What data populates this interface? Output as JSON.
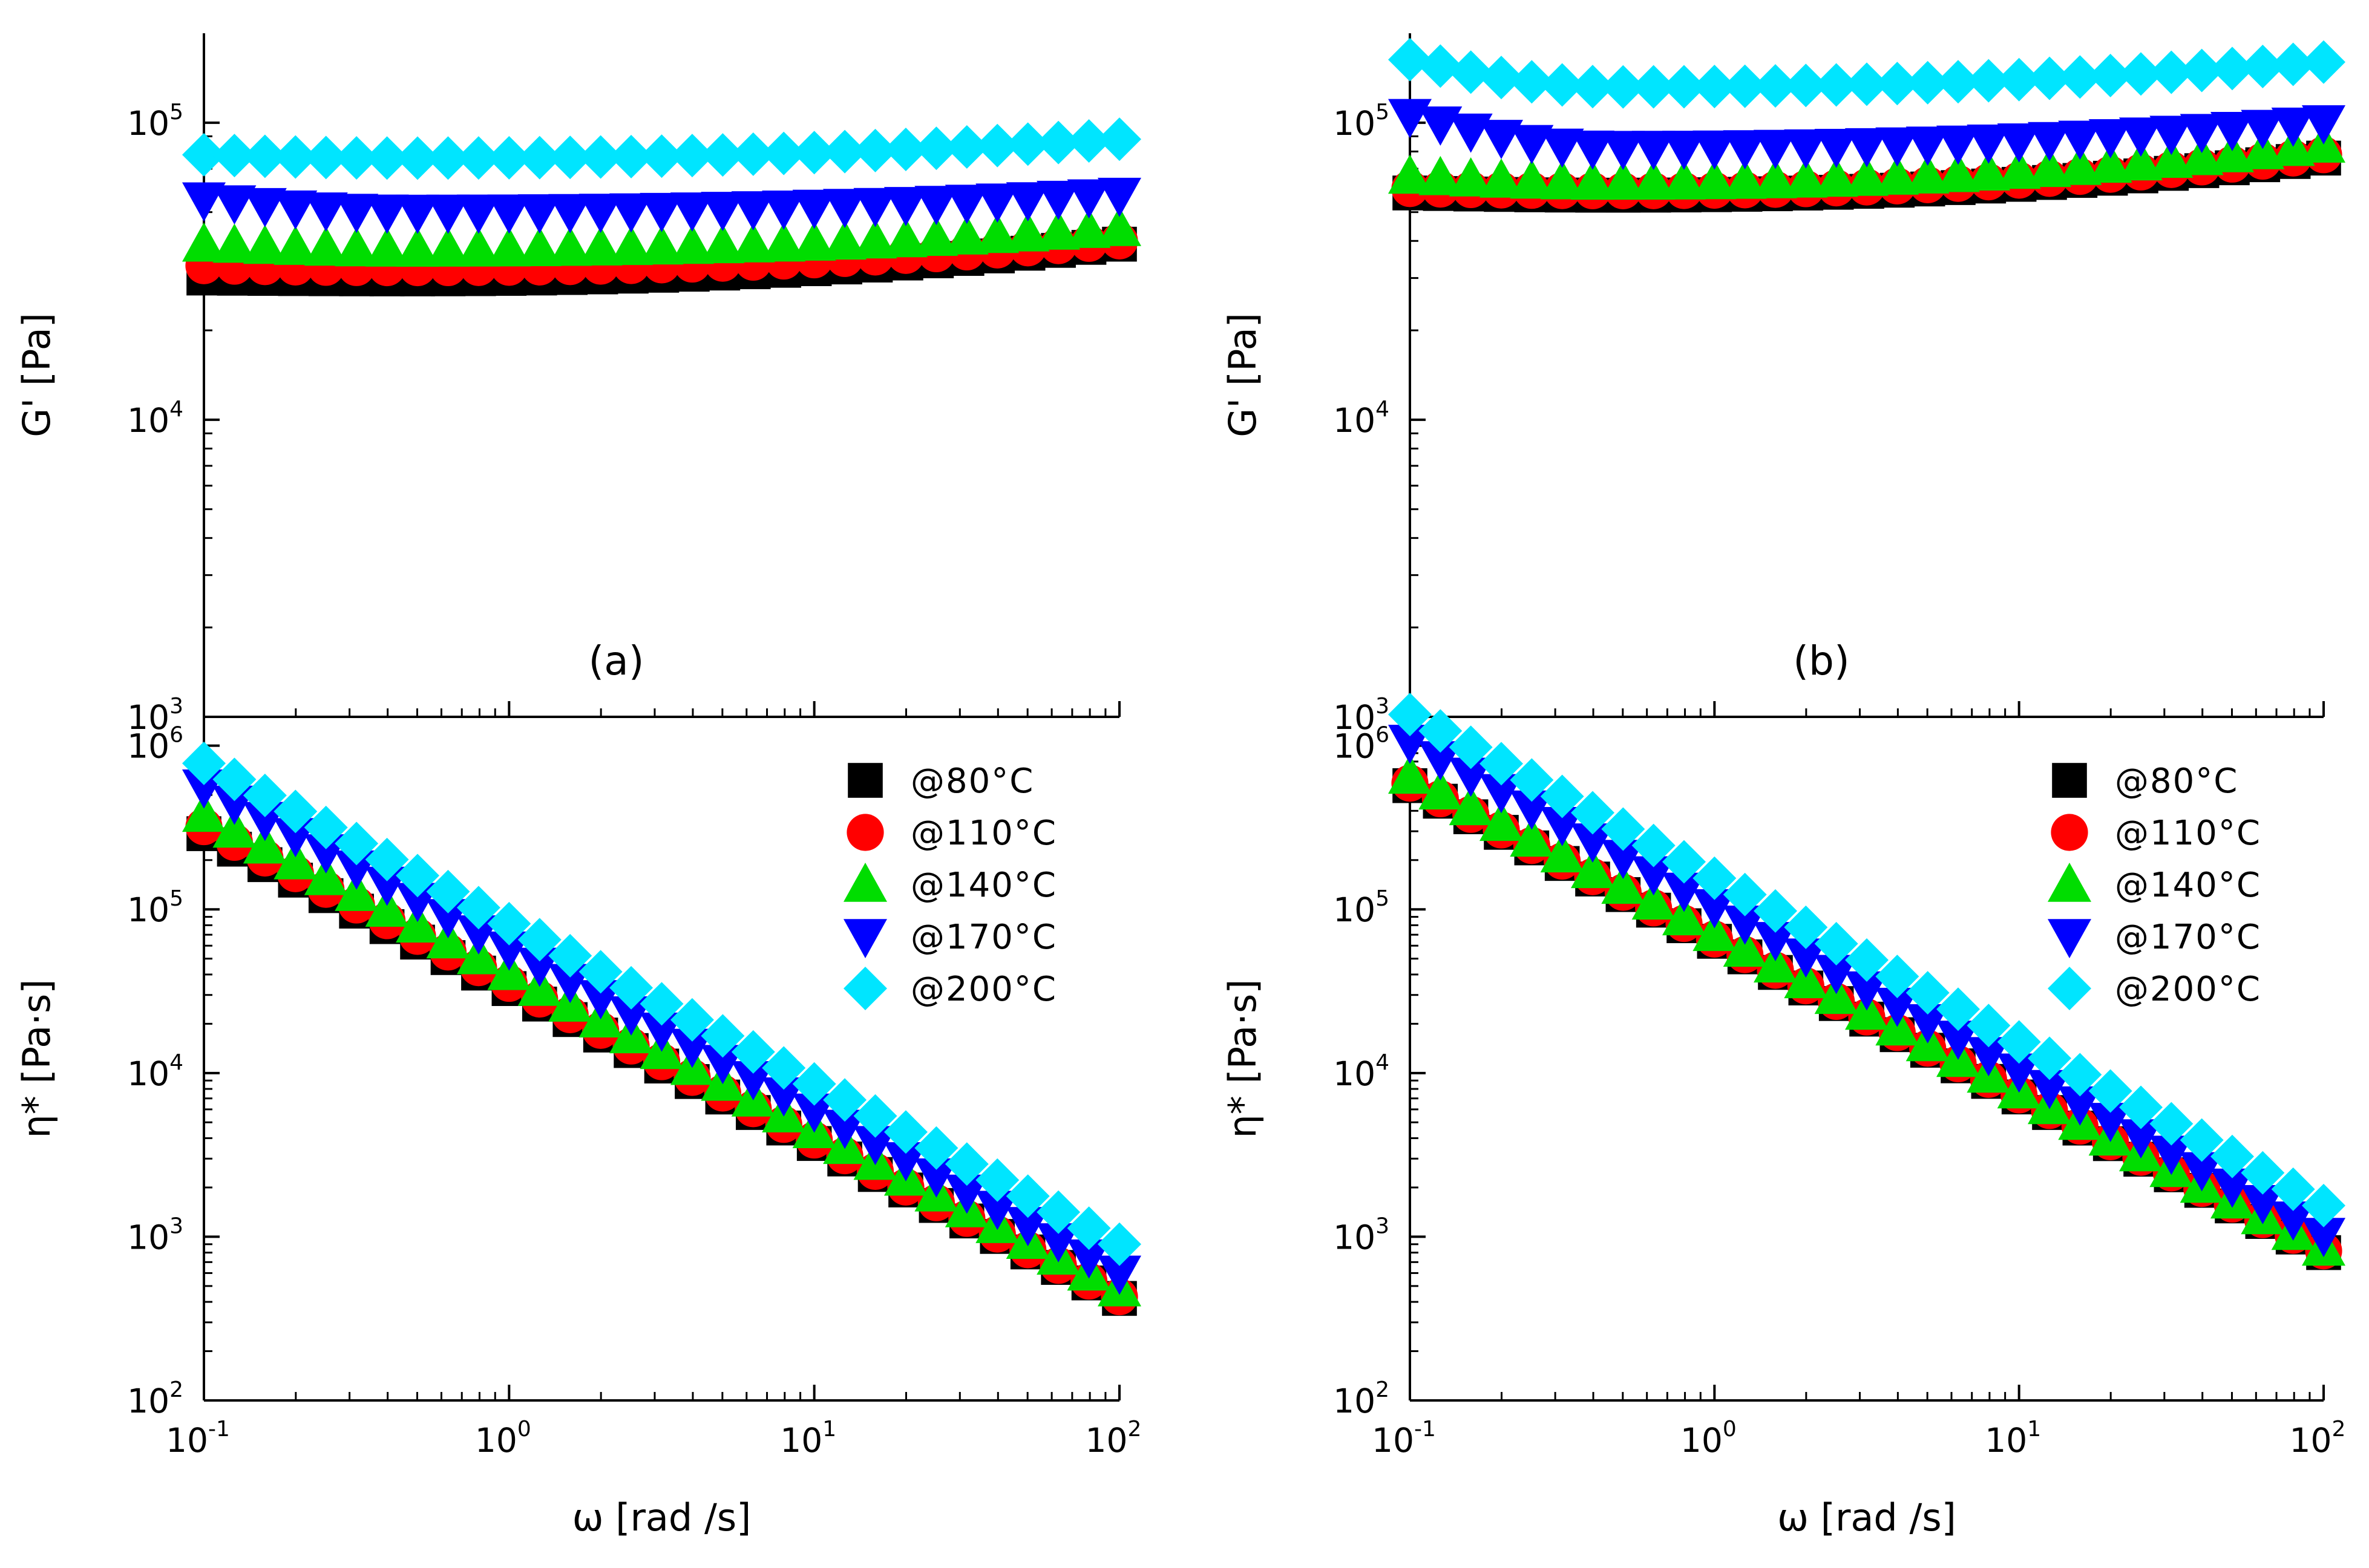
{
  "figure": {
    "panel_labels": [
      "(a)",
      "(b)"
    ],
    "x_axis_title": "ω [rad /s]",
    "y_axis_title_top": "G' [Pa]",
    "y_axis_title_bottom": "η* [Pa·s]"
  },
  "chart_data": [
    {
      "id": "a-top",
      "panel": "(a)",
      "type": "scatter",
      "xscale": "log",
      "yscale": "log",
      "xlim": [
        0.1,
        100
      ],
      "ylim": [
        1000,
        200000
      ],
      "ylabel": "G' [Pa]",
      "xlabel": "",
      "xticks": [
        {
          "base": "10",
          "exp": "-1"
        },
        {
          "base": "10",
          "exp": "0"
        },
        {
          "base": "10",
          "exp": "1"
        },
        {
          "base": "10",
          "exp": "2"
        }
      ],
      "yticks": [
        {
          "value": 1000,
          "base": "10",
          "exp": "3"
        },
        {
          "value": 10000,
          "base": "10",
          "exp": "4"
        },
        {
          "value": 100000,
          "base": "10",
          "exp": "5"
        }
      ],
      "show_x_tick_labels": false,
      "annotation": "(a)",
      "series": [
        {
          "name": "@80°C",
          "marker": "square",
          "color": "#000000",
          "y_start": 30000,
          "y_min": 29800,
          "y_end": 39000
        },
        {
          "name": "@110°C",
          "marker": "circle",
          "color": "#ff0000",
          "y_start": 33000,
          "y_min": 32500,
          "y_end": 40000
        },
        {
          "name": "@140°C",
          "marker": "triangle-up",
          "color": "#00dd00",
          "y_start": 39000,
          "y_min": 37500,
          "y_end": 44000
        },
        {
          "name": "@170°C",
          "marker": "triangle-down",
          "color": "#0000ff",
          "y_start": 55000,
          "y_min": 50000,
          "y_end": 57000
        },
        {
          "name": "@200°C",
          "marker": "diamond",
          "color": "#00e5ff",
          "y_start": 78000,
          "y_min": 76000,
          "y_end": 88000
        }
      ]
    },
    {
      "id": "b-top",
      "panel": "(b)",
      "type": "scatter",
      "xscale": "log",
      "yscale": "log",
      "xlim": [
        0.1,
        100
      ],
      "ylim": [
        1000,
        200000
      ],
      "ylabel": "G' [Pa]",
      "xlabel": "",
      "xticks": [
        {
          "base": "10",
          "exp": "-1"
        },
        {
          "base": "10",
          "exp": "0"
        },
        {
          "base": "10",
          "exp": "1"
        },
        {
          "base": "10",
          "exp": "2"
        }
      ],
      "yticks": [
        {
          "value": 1000,
          "base": "10",
          "exp": "3"
        },
        {
          "value": 10000,
          "base": "10",
          "exp": "4"
        },
        {
          "value": 100000,
          "base": "10",
          "exp": "5"
        }
      ],
      "show_x_tick_labels": false,
      "annotation": "(b)",
      "series": [
        {
          "name": "@80°C",
          "marker": "square",
          "color": "#000000",
          "y_start": 58000,
          "y_min": 57000,
          "y_end": 76000
        },
        {
          "name": "@110°C",
          "marker": "circle",
          "color": "#ff0000",
          "y_start": 60000,
          "y_min": 59000,
          "y_end": 78000
        },
        {
          "name": "@140°C",
          "marker": "triangle-up",
          "color": "#00dd00",
          "y_start": 66000,
          "y_min": 63000,
          "y_end": 84000
        },
        {
          "name": "@170°C",
          "marker": "triangle-down",
          "color": "#0000ff",
          "y_start": 105000,
          "y_min": 82000,
          "y_end": 100000
        },
        {
          "name": "@200°C",
          "marker": "diamond",
          "color": "#00e5ff",
          "y_start": 163000,
          "y_min": 132000,
          "y_end": 160000
        }
      ]
    },
    {
      "id": "a-bottom",
      "panel": "(a)",
      "type": "scatter",
      "xscale": "log",
      "yscale": "log",
      "xlim": [
        0.1,
        100
      ],
      "ylim": [
        100,
        1500000
      ],
      "ylabel": "η* [Pa·s]",
      "xlabel": "ω [rad /s]",
      "xticks": [
        {
          "base": "10",
          "exp": "-1"
        },
        {
          "base": "10",
          "exp": "0"
        },
        {
          "base": "10",
          "exp": "1"
        },
        {
          "base": "10",
          "exp": "2"
        }
      ],
      "yticks": [
        {
          "value": 100,
          "base": "10",
          "exp": "2"
        },
        {
          "value": 1000,
          "base": "10",
          "exp": "3"
        },
        {
          "value": 10000,
          "base": "10",
          "exp": "4"
        },
        {
          "value": 100000,
          "base": "10",
          "exp": "5"
        },
        {
          "value": 1000000,
          "base": "10",
          "exp": "6"
        }
      ],
      "show_x_tick_labels": true,
      "legend": "top-right",
      "series": [
        {
          "name": "@80°C",
          "marker": "square",
          "color": "#000000",
          "y_start": 290000,
          "y_end": 420
        },
        {
          "name": "@110°C",
          "marker": "circle",
          "color": "#ff0000",
          "y_start": 320000,
          "y_end": 430
        },
        {
          "name": "@140°C",
          "marker": "triangle-up",
          "color": "#00dd00",
          "y_start": 380000,
          "y_end": 480
        },
        {
          "name": "@170°C",
          "marker": "triangle-down",
          "color": "#0000ff",
          "y_start": 560000,
          "y_end": 600
        },
        {
          "name": "@200°C",
          "marker": "diamond",
          "color": "#00e5ff",
          "y_start": 780000,
          "y_end": 900
        }
      ]
    },
    {
      "id": "b-bottom",
      "panel": "(b)",
      "type": "scatter",
      "xscale": "log",
      "yscale": "log",
      "xlim": [
        0.1,
        100
      ],
      "ylim": [
        100,
        1500000
      ],
      "ylabel": "η* [Pa·s]",
      "xlabel": "ω [rad /s]",
      "xticks": [
        {
          "base": "10",
          "exp": "-1"
        },
        {
          "base": "10",
          "exp": "0"
        },
        {
          "base": "10",
          "exp": "1"
        },
        {
          "base": "10",
          "exp": "2"
        }
      ],
      "yticks": [
        {
          "value": 100,
          "base": "10",
          "exp": "2"
        },
        {
          "value": 1000,
          "base": "10",
          "exp": "3"
        },
        {
          "value": 10000,
          "base": "10",
          "exp": "4"
        },
        {
          "value": 100000,
          "base": "10",
          "exp": "5"
        },
        {
          "value": 1000000,
          "base": "10",
          "exp": "6"
        }
      ],
      "show_x_tick_labels": true,
      "legend": "top-right",
      "series": [
        {
          "name": "@80°C",
          "marker": "square",
          "color": "#000000",
          "y_start": 570000,
          "y_end": 800
        },
        {
          "name": "@110°C",
          "marker": "circle",
          "color": "#ff0000",
          "y_start": 590000,
          "y_end": 820
        },
        {
          "name": "@140°C",
          "marker": "triangle-up",
          "color": "#00dd00",
          "y_start": 650000,
          "y_end": 850
        },
        {
          "name": "@170°C",
          "marker": "triangle-down",
          "color": "#0000ff",
          "y_start": 1050000,
          "y_end": 1020
        },
        {
          "name": "@200°C",
          "marker": "diamond",
          "color": "#00e5ff",
          "y_start": 1550000,
          "y_end": 1550
        }
      ]
    }
  ],
  "points_per_series": 31
}
